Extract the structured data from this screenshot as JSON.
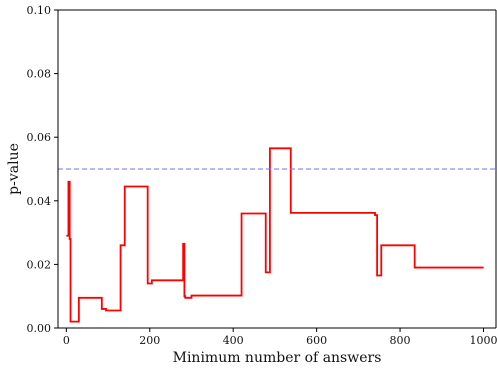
{
  "chart_data": {
    "type": "line",
    "title": "",
    "xlabel": "Minimum number of answers",
    "ylabel": "p-value",
    "xlim": [
      -20,
      1030
    ],
    "ylim": [
      0,
      0.1
    ],
    "xticks": [
      0,
      200,
      400,
      600,
      800,
      1000
    ],
    "xtick_labels": [
      "0",
      "200",
      "400",
      "600",
      "800",
      "1000"
    ],
    "yticks": [
      0,
      0.02,
      0.04,
      0.06,
      0.08,
      0.1
    ],
    "ytick_labels": [
      "0.00",
      "0.02",
      "0.04",
      "0.06",
      "0.08",
      "0.10"
    ],
    "grid": false,
    "series": [
      {
        "color": "#ff0000",
        "style": "step",
        "x": [
          0,
          5,
          8,
          10,
          15,
          30,
          85,
          95,
          130,
          140,
          195,
          205,
          280,
          283,
          285,
          300,
          420,
          478,
          488,
          538,
          735,
          740,
          745,
          750,
          755,
          760,
          830,
          835,
          1000
        ],
        "y": [
          0.029,
          0.046,
          0.028,
          0.002,
          0.002,
          0.0095,
          0.006,
          0.0055,
          0.026,
          0.0445,
          0.014,
          0.015,
          0.0265,
          0.01,
          0.0095,
          0.0102,
          0.036,
          0.0175,
          0.0565,
          0.0362,
          0.0362,
          0.0355,
          0.0165,
          0.0165,
          0.026,
          0.026,
          0.026,
          0.019,
          0.019
        ]
      },
      {
        "color": "#7070ff",
        "style": "dashed",
        "x": [
          -20,
          1030
        ],
        "y": [
          0.05,
          0.05
        ]
      }
    ]
  }
}
